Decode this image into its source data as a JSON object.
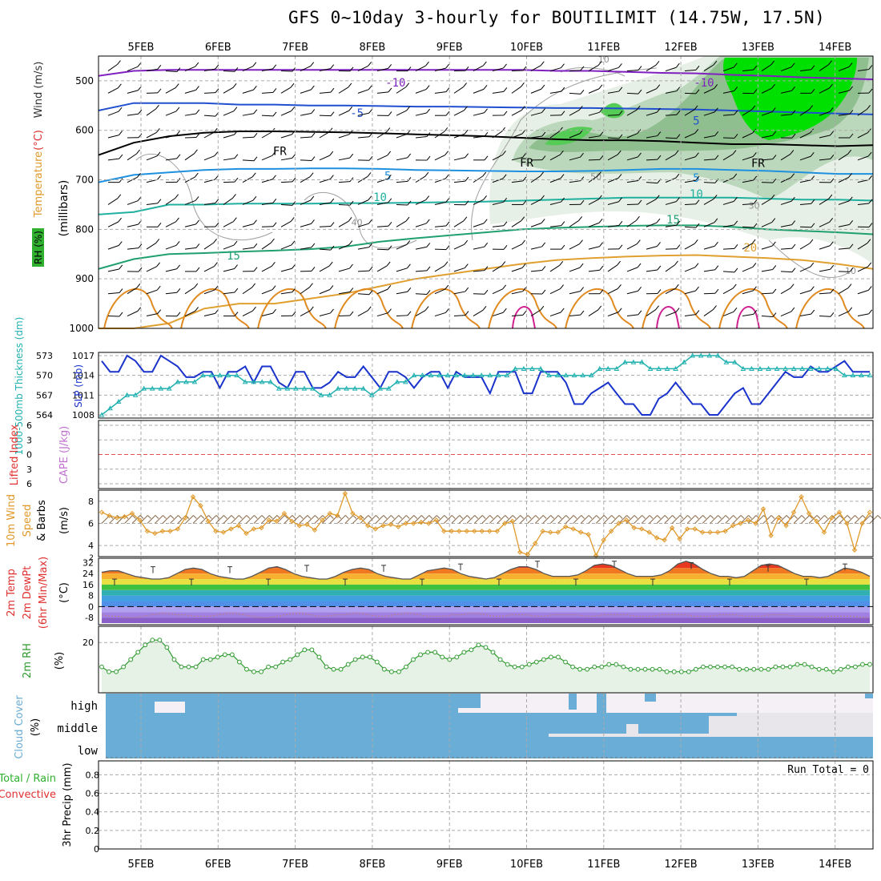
{
  "title": "GFS 0~10day 3-hourly for BOUTILIMIT (14.75W, 17.5N)",
  "dates": [
    "5FEB",
    "6FEB",
    "7FEB",
    "8FEB",
    "9FEB",
    "10FEB",
    "11FEB",
    "12FEB",
    "13FEB",
    "14FEB"
  ],
  "colors": {
    "slp": "#1a33cc",
    "thickness": "#20b0b0",
    "wind10": "#e0992a",
    "rh2m": "#2f9a2f",
    "cloud": "#6aadd6",
    "cape": "#c070d0",
    "lifted": "#e23030",
    "precip_total": "#2fb02f",
    "precip_conv": "#e03030",
    "temp_iso": "#a040c0"
  },
  "chart_data": [
    {
      "type": "heatmap",
      "name": "upper-air",
      "ylabel_segments": [
        {
          "text": "RH (%)",
          "color": "#2f9a2f"
        },
        {
          "text": "Temperature",
          "color": "#e0992a"
        },
        {
          "text": "(°C)",
          "color": "#e03030"
        },
        {
          "text": "Wind (m/s)",
          "color": "#333333"
        }
      ],
      "ylabel_unit": "(millibars)",
      "y_ticks": [
        500,
        600,
        700,
        800,
        900,
        1000
      ],
      "ylim": [
        450,
        1000
      ],
      "isotherm_labels": [
        {
          "text": "-10",
          "day": 3.3,
          "p": 503,
          "color": "#8020c0"
        },
        {
          "text": "-10",
          "day": 7.3,
          "p": 503,
          "color": "#8020c0"
        },
        {
          "text": "-5",
          "day": 2.8,
          "p": 565,
          "color": "#2050d0"
        },
        {
          "text": "5",
          "day": 7.2,
          "p": 580,
          "color": "#2050d0"
        },
        {
          "text": "FR",
          "day": 1.8,
          "p": 642,
          "color": "#000000"
        },
        {
          "text": "FR",
          "day": 5.0,
          "p": 665,
          "color": "#000000"
        },
        {
          "text": "FR",
          "day": 8.0,
          "p": 666,
          "color": "#000000"
        },
        {
          "text": "5",
          "day": 3.2,
          "p": 692,
          "color": "#1e90e0"
        },
        {
          "text": "5",
          "day": 7.2,
          "p": 696,
          "color": "#1e90e0"
        },
        {
          "text": "10",
          "day": 3.1,
          "p": 735,
          "color": "#20b0a0"
        },
        {
          "text": "10",
          "day": 7.2,
          "p": 728,
          "color": "#20b0a0"
        },
        {
          "text": "15",
          "day": 1.2,
          "p": 853,
          "color": "#20a070"
        },
        {
          "text": "15",
          "day": 6.9,
          "p": 780,
          "color": "#20a070"
        },
        {
          "text": "20",
          "day": 7.9,
          "p": 837,
          "color": "#e0a030"
        }
      ],
      "rh_labels": [
        {
          "text": "10",
          "day": 6.0,
          "p": 463
        },
        {
          "text": "50",
          "day": 5.9,
          "p": 700
        },
        {
          "text": "30",
          "day": 7.95,
          "p": 758
        },
        {
          "text": "40",
          "day": 2.8,
          "p": 792
        },
        {
          "text": "10",
          "day": 9.2,
          "p": 890
        }
      ],
      "series": [
        {
          "name": "-10",
          "color": "#8020c0",
          "values": [
            490,
            480,
            478,
            478,
            478,
            478,
            478,
            478,
            478,
            478,
            478,
            478,
            478,
            480,
            480,
            482,
            484,
            485,
            488,
            490,
            493,
            495,
            497
          ]
        },
        {
          "name": "-5",
          "color": "#2050d0",
          "values": [
            560,
            545,
            545,
            545,
            548,
            548,
            550,
            550,
            551,
            552,
            552,
            553,
            554,
            555,
            555,
            556,
            557,
            558,
            560,
            562,
            564,
            566,
            568
          ]
        },
        {
          "name": "FR",
          "color": "#000000",
          "values": [
            650,
            625,
            612,
            605,
            602,
            602,
            603,
            604,
            606,
            608,
            610,
            612,
            615,
            618,
            620,
            620,
            622,
            625,
            628,
            628,
            630,
            632,
            630
          ]
        },
        {
          "name": "5",
          "color": "#1e90e0",
          "values": [
            705,
            690,
            685,
            680,
            678,
            678,
            677,
            677,
            678,
            680,
            681,
            682,
            683,
            683,
            682,
            680,
            678,
            678,
            680,
            682,
            685,
            688,
            688
          ]
        },
        {
          "name": "10",
          "color": "#20b0a0",
          "values": [
            770,
            765,
            750,
            750,
            748,
            748,
            748,
            747,
            747,
            746,
            745,
            744,
            742,
            740,
            738,
            736,
            736,
            736,
            736,
            738,
            740,
            740,
            742
          ]
        },
        {
          "name": "15",
          "color": "#20a070",
          "values": [
            880,
            860,
            850,
            848,
            845,
            843,
            840,
            835,
            825,
            818,
            812,
            806,
            800,
            797,
            795,
            793,
            792,
            792,
            795,
            800,
            803,
            806,
            810
          ]
        },
        {
          "name": "20",
          "color": "#e0a030",
          "values": [
            1000,
            1000,
            990,
            960,
            950,
            950,
            940,
            930,
            915,
            900,
            890,
            880,
            870,
            862,
            858,
            855,
            853,
            852,
            855,
            858,
            862,
            870,
            880
          ]
        }
      ]
    },
    {
      "type": "line",
      "name": "slp-thickness",
      "ylabel_left": "1000-500mb Thickness (dm)",
      "ylabel_right": "SLP (mb)",
      "left_ticks": [
        564,
        567,
        570,
        573
      ],
      "right_ticks": [
        1008,
        1011,
        1014,
        1017
      ],
      "slp": [
        1016,
        1014,
        1014,
        1017,
        1016,
        1014,
        1014,
        1017,
        1016,
        1015,
        1013,
        1013,
        1014,
        1014,
        1011,
        1014,
        1014,
        1015,
        1012,
        1015,
        1015,
        1012,
        1011,
        1014,
        1014,
        1011,
        1011,
        1012,
        1014,
        1013,
        1013,
        1015,
        1013,
        1011,
        1014,
        1014,
        1013,
        1011,
        1013,
        1014,
        1014,
        1011,
        1014,
        1013,
        1013,
        1013,
        1010,
        1014,
        1014,
        1014,
        1010,
        1010,
        1014,
        1014,
        1014,
        1012,
        1008,
        1008,
        1010,
        1011,
        1012,
        1010,
        1008,
        1008,
        1006,
        1006,
        1009,
        1010,
        1012,
        1010,
        1008,
        1008,
        1006,
        1006,
        1008,
        1010,
        1011,
        1008,
        1008,
        1010,
        1012,
        1014,
        1013,
        1013,
        1015,
        1014,
        1014,
        1015,
        1016,
        1014,
        1014,
        1014
      ],
      "thickness": [
        564,
        565,
        566,
        567,
        567,
        568,
        568,
        568,
        568,
        569,
        569,
        569,
        570,
        570,
        570,
        570,
        570,
        569,
        569,
        569,
        569,
        568,
        568,
        568,
        568,
        568,
        567,
        567,
        568,
        568,
        568,
        568,
        567,
        568,
        568,
        569,
        569,
        570,
        570,
        570,
        570,
        570,
        570,
        570,
        570,
        570,
        570,
        570,
        570,
        571,
        571,
        571,
        571,
        570,
        570,
        570,
        570,
        570,
        570,
        571,
        571,
        571,
        572,
        572,
        572,
        571,
        571,
        571,
        571,
        572,
        573,
        573,
        573,
        573,
        572,
        572,
        571,
        571,
        571,
        571,
        571,
        571,
        571,
        571,
        571,
        571,
        571,
        571,
        570,
        570,
        570,
        570
      ]
    },
    {
      "type": "line",
      "name": "cape-lifted",
      "ylabel_left": "Lifted Index",
      "ylabel_right": "CAPE (J/kg)",
      "ticks": [
        6,
        3,
        0,
        -3,
        -6
      ],
      "tick_labels": [
        "6",
        "3",
        "0",
        "3",
        "6"
      ],
      "values": []
    },
    {
      "type": "line",
      "name": "wind10m",
      "ylabel": "10m Wind Speed & Barbs",
      "unit": "(m/s)",
      "y_ticks": [
        4,
        6,
        8
      ],
      "ylim": [
        3,
        9
      ],
      "values": [
        7.0,
        6.7,
        6.5,
        6.6,
        6.9,
        6.3,
        5.3,
        5.1,
        5.3,
        5.3,
        5.5,
        6.5,
        8.4,
        7.6,
        6.2,
        5.3,
        5.2,
        5.5,
        5.8,
        5.1,
        5.5,
        5.6,
        6.3,
        6.2,
        6.9,
        6.2,
        5.8,
        5.9,
        5.4,
        6.3,
        6.9,
        6.7,
        8.7,
        6.9,
        6.5,
        5.8,
        5.5,
        5.8,
        5.9,
        5.7,
        6.0,
        6.0,
        6.1,
        6.0,
        6.3,
        5.3,
        5.3,
        5.3,
        5.3,
        5.3,
        5.3,
        5.3,
        5.3,
        6.0,
        6.2,
        3.4,
        3.2,
        4.2,
        5.3,
        5.2,
        5.2,
        5.7,
        5.5,
        5.2,
        5.0,
        3.1,
        4.5,
        5.3,
        6.0,
        6.3,
        5.6,
        5.5,
        5.2,
        4.7,
        4.5,
        5.6,
        4.6,
        5.5,
        5.5,
        5.2,
        5.2,
        5.2,
        5.3,
        5.8,
        6.0,
        6.3,
        6.0,
        7.3,
        4.9,
        6.5,
        5.8,
        7.0,
        8.4,
        6.9,
        6.2,
        5.2,
        6.5,
        7.0,
        6.0,
        3.6,
        6.0,
        7.0
      ]
    },
    {
      "type": "area",
      "name": "temp2m",
      "ylabel": "2m Temp 2m DewPt (6hr Min/Max)",
      "unit": "(°C)",
      "y_ticks": [
        32,
        24,
        16,
        8,
        0,
        -8
      ],
      "y_tick_labels": [
        "32",
        "24",
        "16",
        "8",
        "0",
        "-8"
      ],
      "ylim": [
        -12,
        34
      ],
      "temp": [
        25,
        26,
        26,
        24,
        22,
        21,
        20,
        20,
        21,
        24,
        27,
        28,
        27,
        24,
        22,
        21,
        20,
        20,
        22,
        25,
        28,
        29,
        27,
        24,
        22,
        21,
        20,
        20,
        22,
        25,
        27,
        28,
        27,
        24,
        22,
        21,
        20,
        20,
        23,
        26,
        27,
        28,
        27,
        24,
        22,
        21,
        20,
        21,
        24,
        27,
        29,
        29,
        27,
        24,
        22,
        22,
        22,
        23,
        26,
        30,
        31,
        30,
        27,
        24,
        22,
        22,
        22,
        23,
        26,
        31,
        33,
        31,
        27,
        24,
        22,
        22,
        21,
        22,
        26,
        30,
        31,
        30,
        27,
        24,
        22,
        22,
        21,
        22,
        25,
        28,
        27,
        25,
        22
      ],
      "dewpt": [
        -6,
        -7,
        -7,
        -8,
        -8,
        -7,
        -6,
        -5,
        -5,
        -6,
        -6,
        -7,
        -7,
        -7,
        -6,
        -5,
        -5,
        -6,
        -7,
        -8,
        -8,
        -7,
        -6,
        -5,
        -5,
        -6,
        -7,
        -7,
        -6,
        -6,
        -5,
        -5,
        -6,
        -7,
        -7,
        -6,
        -5,
        -5,
        -6,
        -7,
        -7,
        -7,
        -6,
        -6,
        -5,
        -5,
        -6,
        -7,
        -7,
        -6,
        -6,
        -6,
        -7,
        -7,
        -6,
        -6,
        -6,
        -6,
        -7,
        -7,
        -6,
        -6,
        -6,
        -6,
        -7,
        -7,
        -7,
        -6,
        -6,
        -6,
        -6,
        -7,
        -7,
        -7,
        -6,
        -6,
        -6,
        -7,
        -7,
        -7,
        -6,
        -6,
        -6,
        -7,
        -7,
        -7,
        -8,
        -7,
        -7,
        -7,
        -7,
        -8,
        -8
      ],
      "maxmin": [
        20,
        29,
        20,
        29,
        20,
        30,
        20,
        30,
        20,
        31,
        20,
        33,
        20,
        33,
        20,
        32,
        20,
        30,
        20,
        31
      ]
    },
    {
      "type": "line",
      "name": "rh2m",
      "ylabel": "2m RH",
      "unit": "(%)",
      "y_ticks": [
        20
      ],
      "ylim": [
        0,
        26
      ],
      "values": [
        10,
        8,
        8,
        10,
        13,
        16,
        19,
        21,
        21,
        18,
        13,
        10,
        10,
        10,
        13,
        13,
        14,
        15,
        15,
        12,
        9,
        8,
        8,
        10,
        10,
        12,
        13,
        15,
        17,
        17,
        14,
        10,
        9,
        9,
        11,
        13,
        14,
        14,
        12,
        9,
        8,
        8,
        10,
        13,
        15,
        16,
        16,
        14,
        13,
        14,
        16,
        17,
        19,
        18,
        16,
        13,
        11,
        10,
        10,
        11,
        12,
        13,
        14,
        14,
        12,
        10,
        9,
        9,
        10,
        10,
        11,
        11,
        10,
        9,
        9,
        9,
        9,
        9,
        8,
        8,
        8,
        8,
        9,
        10,
        10,
        10,
        10,
        10,
        9,
        9,
        9,
        9,
        9,
        10,
        10,
        10,
        11,
        11,
        10,
        9,
        9,
        8,
        9,
        10,
        10,
        11,
        11
      ]
    },
    {
      "type": "heatmap",
      "name": "cloud-cover",
      "ylabel": "Cloud Cover",
      "unit": "(%)",
      "levels": [
        "high",
        "middle",
        "low"
      ]
    },
    {
      "type": "bar",
      "name": "precip",
      "ylabel_total": "Total / Rain",
      "ylabel_conv": "Convective",
      "ylabel": "3hr Precip (mm)",
      "y_ticks": [
        0,
        0.2,
        0.4,
        0.6,
        0.8
      ],
      "ylim": [
        0,
        0.95
      ],
      "run_total": "Run Total = 0",
      "values": []
    }
  ]
}
